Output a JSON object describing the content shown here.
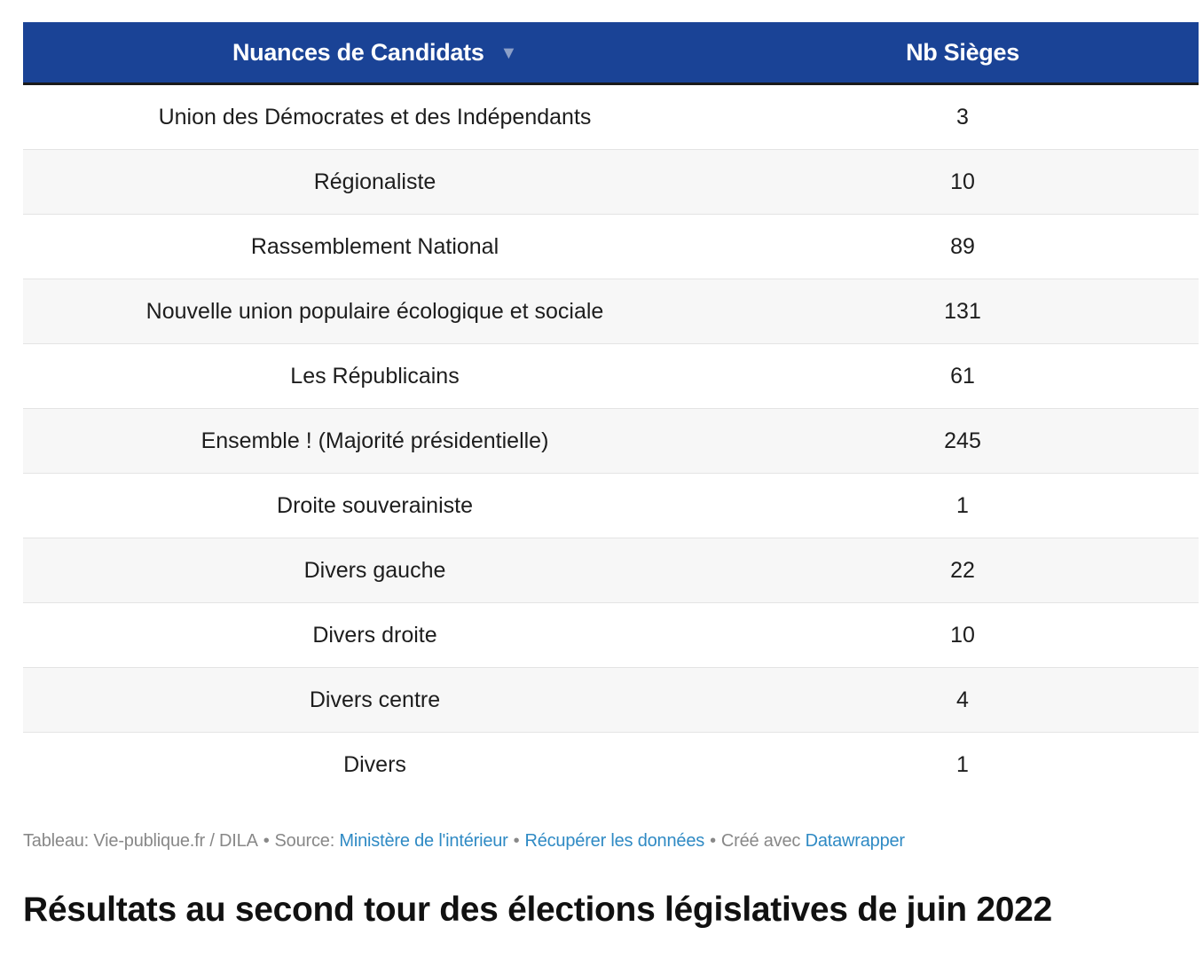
{
  "chart_data": {
    "type": "table",
    "columns": [
      "Nuances de Candidats",
      "Nb Sièges"
    ],
    "sort_indicator": "▼",
    "rows": [
      [
        "Union des Démocrates et des Indépendants",
        "3"
      ],
      [
        "Régionaliste",
        "10"
      ],
      [
        "Rassemblement National",
        "89"
      ],
      [
        "Nouvelle union populaire écologique et sociale",
        "131"
      ],
      [
        "Les Républicains",
        "61"
      ],
      [
        "Ensemble ! (Majorité présidentielle)",
        "245"
      ],
      [
        "Droite souverainiste",
        "1"
      ],
      [
        "Divers gauche",
        "22"
      ],
      [
        "Divers droite",
        "10"
      ],
      [
        "Divers centre",
        "4"
      ],
      [
        "Divers",
        "1"
      ]
    ]
  },
  "footer": {
    "credit": "Tableau: Vie-publique.fr / DILA",
    "source_label": "Source:",
    "source_link": "Ministère de l'intérieur",
    "download_link": "Récupérer les données",
    "made_with_label": "Créé avec",
    "made_with_link": "Datawrapper",
    "separator": "•"
  },
  "title": "Résultats au second tour des élections législatives de juin 2022",
  "colors": {
    "header_bg": "#1a4396",
    "header_text": "#ffffff",
    "link": "#2f8ac4",
    "footer_text": "#888888",
    "zebra": "#f7f7f7"
  }
}
